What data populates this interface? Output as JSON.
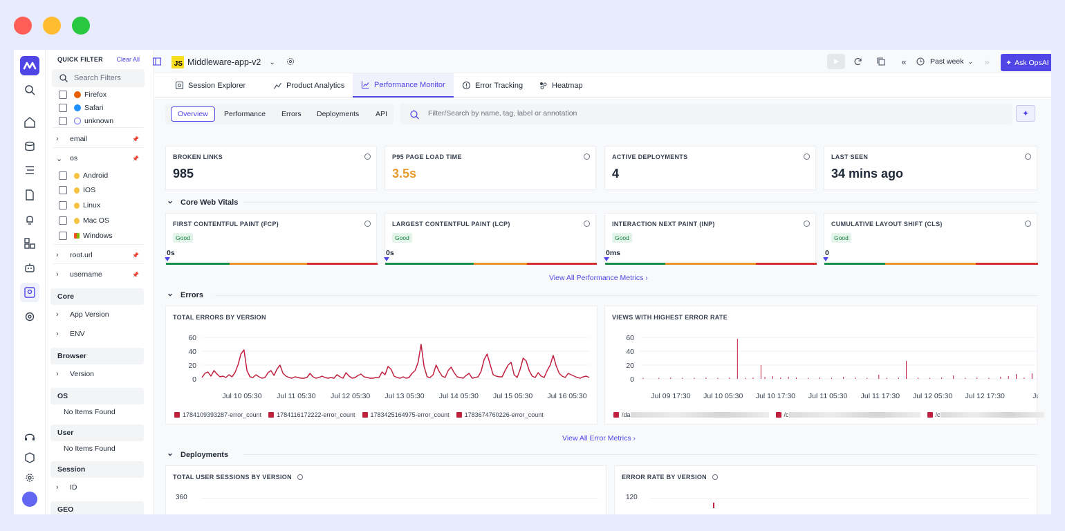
{
  "colors": {
    "accent": "#4f46e5",
    "error_line": "#c0203e",
    "good": "#1a8f4a",
    "warn": "#e9952c",
    "bad": "#d32f2f",
    "amber_value": "#e99a2c"
  },
  "filters": {
    "title": "QUICK FILTER",
    "clear": "Clear All",
    "search_placeholder": "Search Filters",
    "browsers": [
      {
        "label": "Firefox",
        "icon": "firefox-icon"
      },
      {
        "label": "Safari",
        "icon": "safari-icon"
      },
      {
        "label": "unknown",
        "icon": "globe-icon"
      }
    ],
    "email": "email",
    "os": "os",
    "os_items": [
      {
        "label": "Android",
        "icon": "linux-tux-icon"
      },
      {
        "label": "IOS",
        "icon": "linux-tux-icon"
      },
      {
        "label": "Linux",
        "icon": "linux-tux-icon"
      },
      {
        "label": "Mac OS",
        "icon": "linux-tux-icon"
      },
      {
        "label": "Windows",
        "icon": "windows-icon"
      }
    ],
    "root_url": "root.url",
    "username": "username",
    "core": "Core",
    "app_version": "App Version",
    "env": "ENV",
    "browser": "Browser",
    "version": "Version",
    "os_section": "OS",
    "no_items": "No Items Found",
    "user": "User",
    "session": "Session",
    "id": "ID",
    "geo": "GEO"
  },
  "topbar": {
    "app_name": "Middleware-app-v2",
    "js_badge": "JS",
    "time_range": "Past week",
    "ask": "Ask OpsAI"
  },
  "tabs": [
    "Session Explorer",
    "Product Analytics",
    "Performance Monitor",
    "Error Tracking",
    "Heatmap"
  ],
  "subnav": [
    "Overview",
    "Performance",
    "Errors",
    "Deployments",
    "API"
  ],
  "search_placeholder": "Filter/Search by name, tag, label or annotation",
  "kpis": [
    {
      "label": "BROKEN LINKS",
      "value": "985"
    },
    {
      "label": "P95 PAGE LOAD TIME",
      "value": "3.5s"
    },
    {
      "label": "ACTIVE DEPLOYMENTS",
      "value": "4"
    },
    {
      "label": "LAST SEEN",
      "value": "34 mins ago"
    }
  ],
  "sections": {
    "vitals": "Core Web Vitals",
    "errors": "Errors",
    "deployments": "Deployments"
  },
  "vitals": [
    {
      "label": "FIRST CONTENTFUL PAINT (FCP)",
      "status": "Good",
      "value": "0s"
    },
    {
      "label": "LARGEST CONTENTFUL PAINT (LCP)",
      "status": "Good",
      "value": "0s"
    },
    {
      "label": "INTERACTION NEXT PAINT (INP)",
      "status": "Good",
      "value": "0ms"
    },
    {
      "label": "CUMULATIVE LAYOUT SHIFT (CLS)",
      "status": "Good",
      "value": "0"
    }
  ],
  "links": {
    "perf": "View All Performance Metrics ›",
    "errors": "View All Error Metrics ›"
  },
  "chart_data": [
    {
      "type": "line",
      "title": "TOTAL ERRORS BY VERSION",
      "ylim": [
        0,
        60
      ],
      "yticks": [
        "60",
        "40",
        "20",
        "0"
      ],
      "xticks": [
        "Jul 10 05:30",
        "Jul 11 05:30",
        "Jul 12 05:30",
        "Jul 13 05:30",
        "Jul 14 05:30",
        "Jul 15 05:30",
        "Jul 16 05:30"
      ],
      "legend": [
        "1784109393287-error_count",
        "1784116172222-error_count",
        "1783425164975-error_count",
        "1783674760226-error_count"
      ],
      "values": [
        2,
        8,
        10,
        4,
        12,
        7,
        3,
        4,
        2,
        6,
        3,
        9,
        20,
        36,
        42,
        12,
        3,
        2,
        6,
        3,
        1,
        2,
        9,
        12,
        5,
        14,
        20,
        8,
        4,
        2,
        1,
        3,
        2,
        1,
        1,
        2,
        8,
        3,
        1,
        2,
        4,
        2,
        1,
        2,
        1,
        6,
        3,
        1,
        9,
        4,
        1,
        2,
        5,
        7,
        3,
        2,
        1,
        1,
        2,
        2,
        10,
        6,
        18,
        14,
        4,
        2,
        1,
        3,
        1,
        2,
        8,
        12,
        24,
        50,
        18,
        3,
        2,
        6,
        20,
        11,
        4,
        2,
        12,
        17,
        9,
        3,
        2,
        1,
        5,
        8,
        1,
        2,
        3,
        11,
        28,
        36,
        21,
        6,
        4,
        3,
        3,
        12,
        20,
        24,
        6,
        2,
        14,
        30,
        26,
        12,
        4,
        2,
        9,
        4,
        2,
        12,
        20,
        34,
        19,
        8,
        4,
        2,
        8,
        6,
        4,
        2,
        1,
        3,
        4,
        2
      ]
    },
    {
      "type": "bar",
      "title": "VIEWS WITH HIGHEST ERROR RATE",
      "ylim": [
        0,
        60
      ],
      "yticks": [
        "60",
        "40",
        "20",
        "0"
      ],
      "xticks": [
        "Jul 09 17:30",
        "Jul 10 05:30",
        "Jul 10 17:30",
        "Jul 11 05:30",
        "Jul 11 17:30",
        "Jul 12 05:30",
        "Jul 12 17:30",
        "Jul"
      ],
      "spikes": [
        {
          "t": 0.0,
          "v": 1
        },
        {
          "t": 0.04,
          "v": 1
        },
        {
          "t": 0.07,
          "v": 2
        },
        {
          "t": 0.1,
          "v": 1
        },
        {
          "t": 0.13,
          "v": 1
        },
        {
          "t": 0.16,
          "v": 2
        },
        {
          "t": 0.19,
          "v": 1
        },
        {
          "t": 0.22,
          "v": 2
        },
        {
          "t": 0.24,
          "v": 58
        },
        {
          "t": 0.26,
          "v": 1
        },
        {
          "t": 0.28,
          "v": 2
        },
        {
          "t": 0.3,
          "v": 20
        },
        {
          "t": 0.31,
          "v": 3
        },
        {
          "t": 0.33,
          "v": 4
        },
        {
          "t": 0.35,
          "v": 2
        },
        {
          "t": 0.37,
          "v": 3
        },
        {
          "t": 0.39,
          "v": 2
        },
        {
          "t": 0.42,
          "v": 1
        },
        {
          "t": 0.45,
          "v": 2
        },
        {
          "t": 0.48,
          "v": 1
        },
        {
          "t": 0.51,
          "v": 3
        },
        {
          "t": 0.54,
          "v": 2
        },
        {
          "t": 0.57,
          "v": 1
        },
        {
          "t": 0.6,
          "v": 6
        },
        {
          "t": 0.62,
          "v": 1
        },
        {
          "t": 0.65,
          "v": 2
        },
        {
          "t": 0.67,
          "v": 26
        },
        {
          "t": 0.7,
          "v": 2
        },
        {
          "t": 0.73,
          "v": 1
        },
        {
          "t": 0.76,
          "v": 2
        },
        {
          "t": 0.79,
          "v": 5
        },
        {
          "t": 0.82,
          "v": 1
        },
        {
          "t": 0.85,
          "v": 2
        },
        {
          "t": 0.88,
          "v": 1
        },
        {
          "t": 0.91,
          "v": 3
        },
        {
          "t": 0.93,
          "v": 4
        },
        {
          "t": 0.95,
          "v": 7
        },
        {
          "t": 0.97,
          "v": 2
        },
        {
          "t": 0.99,
          "v": 8
        }
      ],
      "legend": [
        "/da",
        "/c",
        "/c"
      ]
    }
  ],
  "deploy_charts": [
    {
      "title": "TOTAL USER SESSIONS BY VERSION",
      "ytick": "360"
    },
    {
      "title": "ERROR RATE BY VERSION",
      "ytick": "120"
    }
  ]
}
